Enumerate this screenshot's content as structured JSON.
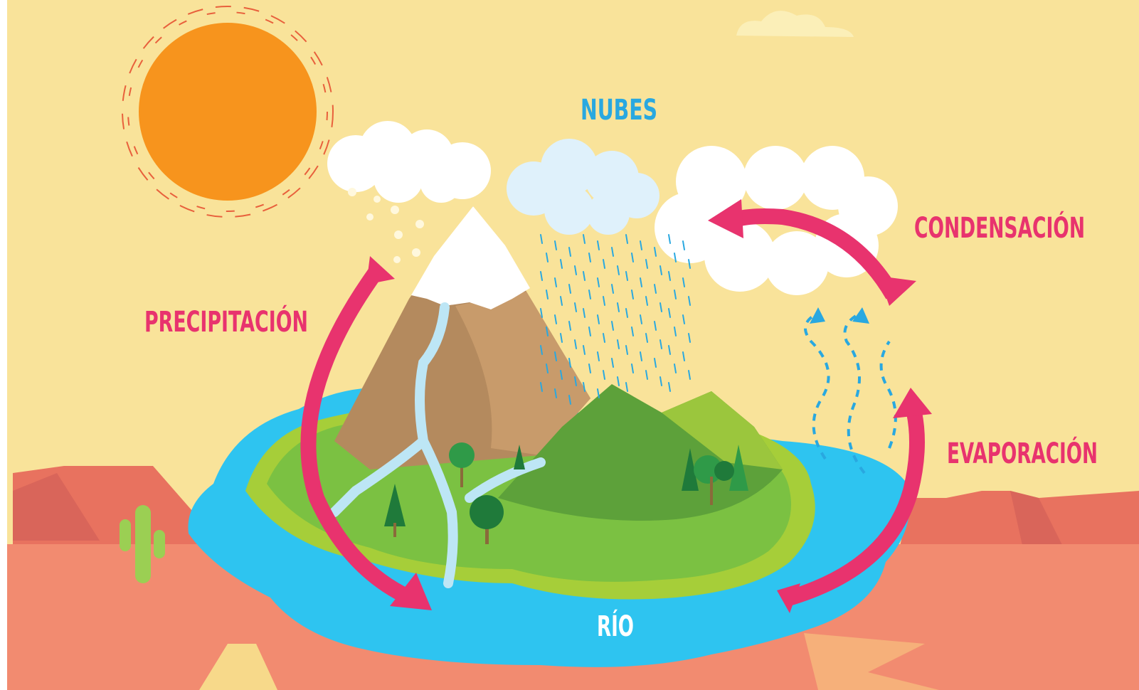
{
  "labels": [
    "NUBES",
    "CONDENSACIÓN",
    "PRECIPITACIÓN",
    "EVAPORACIÓN",
    "RÍO"
  ]
}
